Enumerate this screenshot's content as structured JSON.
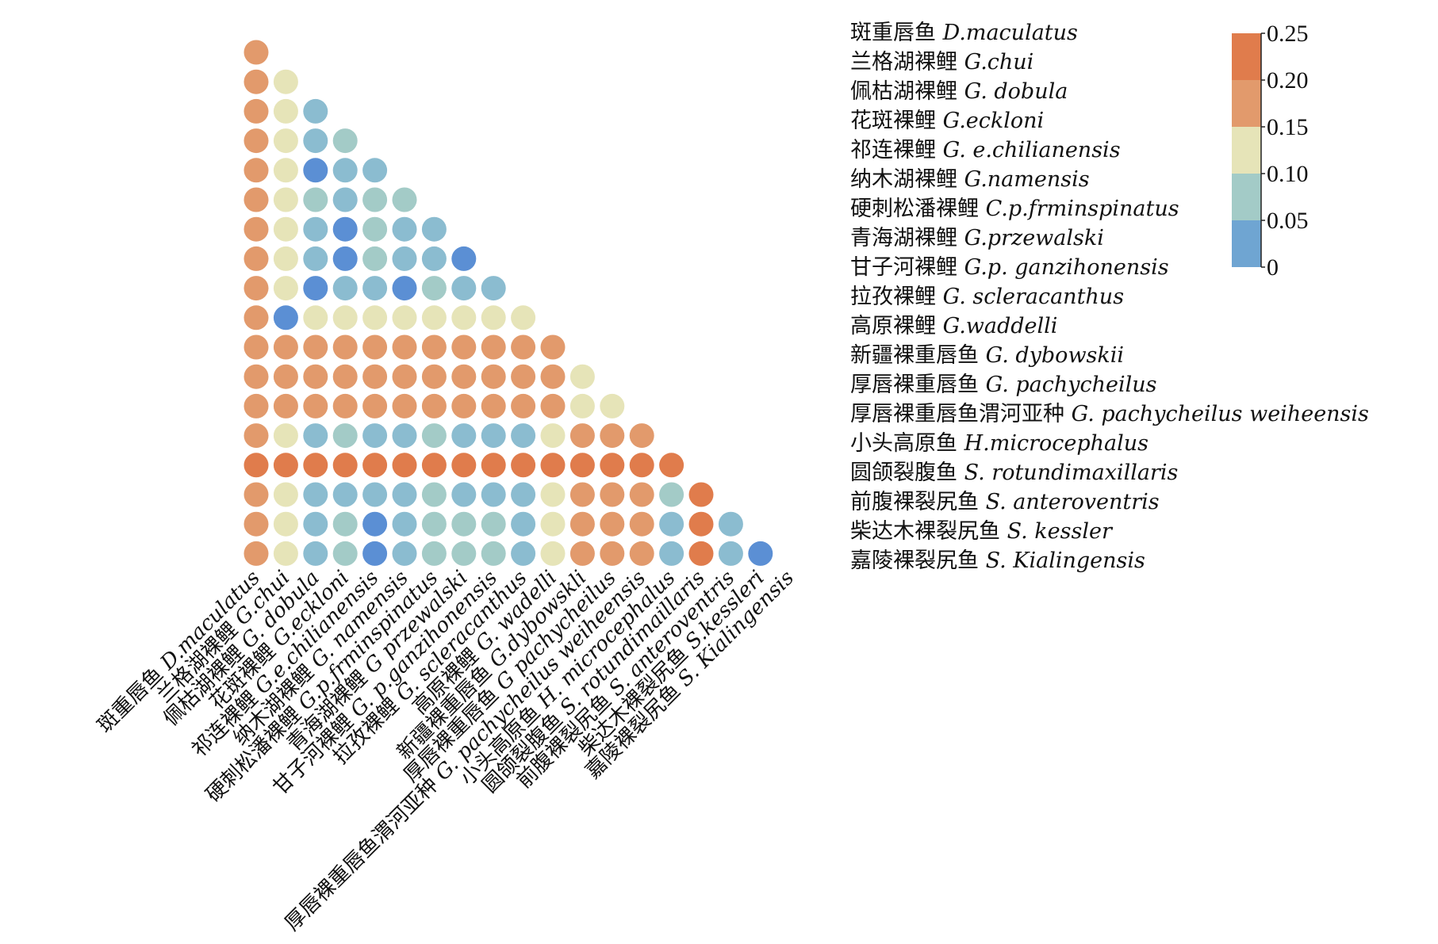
{
  "chart_data": {
    "type": "heatmap",
    "subtype": "lower-triangle dot matrix",
    "species": [
      {
        "cn": "斑重唇鱼",
        "latin": "D.maculatus"
      },
      {
        "cn": "兰格湖裸鲤",
        "latin": "G.chui"
      },
      {
        "cn": "佩枯湖裸鲤",
        "latin": "G. dobula"
      },
      {
        "cn": "花斑裸鲤",
        "latin": "G.eckloni"
      },
      {
        "cn": "祁连裸鲤",
        "latin": "G. e.chilianensis"
      },
      {
        "cn": "纳木湖裸鲤",
        "latin": "G.namensis"
      },
      {
        "cn": "硬刺松潘裸鲤",
        "latin": "C.p.frminspinatus"
      },
      {
        "cn": "青海湖裸鲤",
        "latin": "G.przewalski"
      },
      {
        "cn": "甘子河裸鲤",
        "latin": "G.p. ganzihonensis"
      },
      {
        "cn": "拉孜裸鲤",
        "latin": "G. scleracanthus"
      },
      {
        "cn": "高原裸鲤",
        "latin": "G.waddelli"
      },
      {
        "cn": "新疆裸重唇鱼",
        "latin": "G. dybowskii"
      },
      {
        "cn": "厚唇裸重唇鱼",
        "latin": "G. pachycheilus"
      },
      {
        "cn": "厚唇裸重唇鱼渭河亚种",
        "latin": "G. pachycheilus weiheensis"
      },
      {
        "cn": "小头高原鱼",
        "latin": "H.microcephalus"
      },
      {
        "cn": "圆颌裂腹鱼",
        "latin": "S. rotundimaxillaris"
      },
      {
        "cn": "前腹裸裂尻鱼",
        "latin": "S. anteroventris"
      },
      {
        "cn": "柴达木裸裂尻鱼",
        "latin": "S. kessler"
      },
      {
        "cn": "嘉陵裸裂尻鱼",
        "latin": "S. Kialingensis"
      }
    ],
    "x_tick_labels": [
      {
        "cn": "斑重唇鱼",
        "latin": "D.maculatus"
      },
      {
        "cn": "兰格湖裸鲤",
        "latin": "G.chui"
      },
      {
        "cn": "佩枯湖裸鲤",
        "latin": "G. dobula"
      },
      {
        "cn": "花斑裸鲤",
        "latin": "G.eckloni"
      },
      {
        "cn": "祁连裸鲤",
        "latin": "G.e.chilianensis"
      },
      {
        "cn": "纳木湖裸鲤",
        "latin": "G. namensis"
      },
      {
        "cn": "硬刺松潘裸鲤",
        "latin": "G.p.frminspinatus"
      },
      {
        "cn": "青海湖裸鲤",
        "latin": "G przewalski"
      },
      {
        "cn": "甘子河裸鲤",
        "latin": "G. p.ganzihonensis"
      },
      {
        "cn": "拉孜裸鲤",
        "latin": "G. scleracanthus"
      },
      {
        "cn": "高原裸鲤",
        "latin": "G. wadelli"
      },
      {
        "cn": "新疆裸重唇鱼",
        "latin": "G.dybowskli"
      },
      {
        "cn": "厚唇裸重唇鱼",
        "latin": "G pachycheilus"
      },
      {
        "cn": "厚唇裸重唇鱼渭河亚种",
        "latin": "G. pachycheilus weiheensis"
      },
      {
        "cn": "小头高原鱼",
        "latin": "H. microcephalus"
      },
      {
        "cn": "圆颌裂腹鱼",
        "latin": "S. rotundimaillaris"
      },
      {
        "cn": "前腹裸裂尻鱼",
        "latin": "S. anteroventris"
      },
      {
        "cn": "柴达木裸裂尻鱼",
        "latin": "S.kessleri"
      },
      {
        "cn": "嘉陵裸裂尻鱼",
        "latin": "S. Kialingensis"
      }
    ],
    "matrix": [
      [
        0.18
      ],
      [
        0.18,
        0.12
      ],
      [
        0.18,
        0.12,
        0.06
      ],
      [
        0.18,
        0.12,
        0.06,
        0.08
      ],
      [
        0.18,
        0.12,
        0.01,
        0.06,
        0.06
      ],
      [
        0.18,
        0.12,
        0.08,
        0.06,
        0.08,
        0.08
      ],
      [
        0.18,
        0.12,
        0.06,
        0.01,
        0.08,
        0.06,
        0.06
      ],
      [
        0.18,
        0.12,
        0.06,
        0.01,
        0.08,
        0.06,
        0.06,
        0.01
      ],
      [
        0.18,
        0.12,
        0.02,
        0.06,
        0.06,
        0.01,
        0.08,
        0.06,
        0.06
      ],
      [
        0.18,
        0.01,
        0.12,
        0.12,
        0.12,
        0.12,
        0.12,
        0.12,
        0.12,
        0.12
      ],
      [
        0.18,
        0.18,
        0.18,
        0.18,
        0.18,
        0.18,
        0.18,
        0.18,
        0.18,
        0.18,
        0.18
      ],
      [
        0.18,
        0.18,
        0.18,
        0.18,
        0.18,
        0.18,
        0.18,
        0.18,
        0.18,
        0.18,
        0.18,
        0.12
      ],
      [
        0.18,
        0.18,
        0.18,
        0.18,
        0.18,
        0.18,
        0.18,
        0.18,
        0.18,
        0.18,
        0.18,
        0.12,
        0.12
      ],
      [
        0.18,
        0.12,
        0.06,
        0.08,
        0.04,
        0.06,
        0.08,
        0.06,
        0.06,
        0.06,
        0.12,
        0.18,
        0.18,
        0.18
      ],
      [
        0.22,
        0.22,
        0.22,
        0.22,
        0.22,
        0.22,
        0.22,
        0.22,
        0.22,
        0.22,
        0.22,
        0.22,
        0.22,
        0.22,
        0.22
      ],
      [
        0.18,
        0.12,
        0.06,
        0.06,
        0.06,
        0.06,
        0.08,
        0.06,
        0.06,
        0.06,
        0.12,
        0.18,
        0.18,
        0.18,
        0.08,
        0.22
      ],
      [
        0.18,
        0.12,
        0.06,
        0.08,
        0.02,
        0.06,
        0.08,
        0.08,
        0.08,
        0.06,
        0.12,
        0.18,
        0.18,
        0.18,
        0.04,
        0.22,
        0.06
      ],
      [
        0.18,
        0.12,
        0.06,
        0.08,
        0.02,
        0.06,
        0.08,
        0.08,
        0.08,
        0.06,
        0.12,
        0.18,
        0.18,
        0.18,
        0.04,
        0.22,
        0.06,
        0.02
      ]
    ],
    "colorbar": {
      "range": [
        0,
        0.25
      ],
      "tick_labels": [
        "0.25",
        "0.20",
        "0.15",
        "0.10",
        "0.05",
        "0"
      ],
      "bands": [
        {
          "min": 0.2,
          "max": 0.25,
          "color": "#e07c4c"
        },
        {
          "min": 0.15,
          "max": 0.2,
          "color": "#e29a6c"
        },
        {
          "min": 0.1,
          "max": 0.15,
          "color": "#e6e4b8"
        },
        {
          "min": 0.05,
          "max": 0.1,
          "color": "#a3cbc7"
        },
        {
          "min": 0.0,
          "max": 0.05,
          "color": "#6fa5d2"
        }
      ]
    },
    "point_colors": {
      "very_high": "#e07c4c",
      "high": "#e29a6c",
      "mid": "#e6e4b8",
      "low_a": "#a3cbc7",
      "low_b": "#8bbcd0",
      "lowest": "#5b8fd4"
    },
    "title": "",
    "xlabel": "",
    "ylabel": "",
    "grid": false,
    "legend_position": "top-right"
  }
}
